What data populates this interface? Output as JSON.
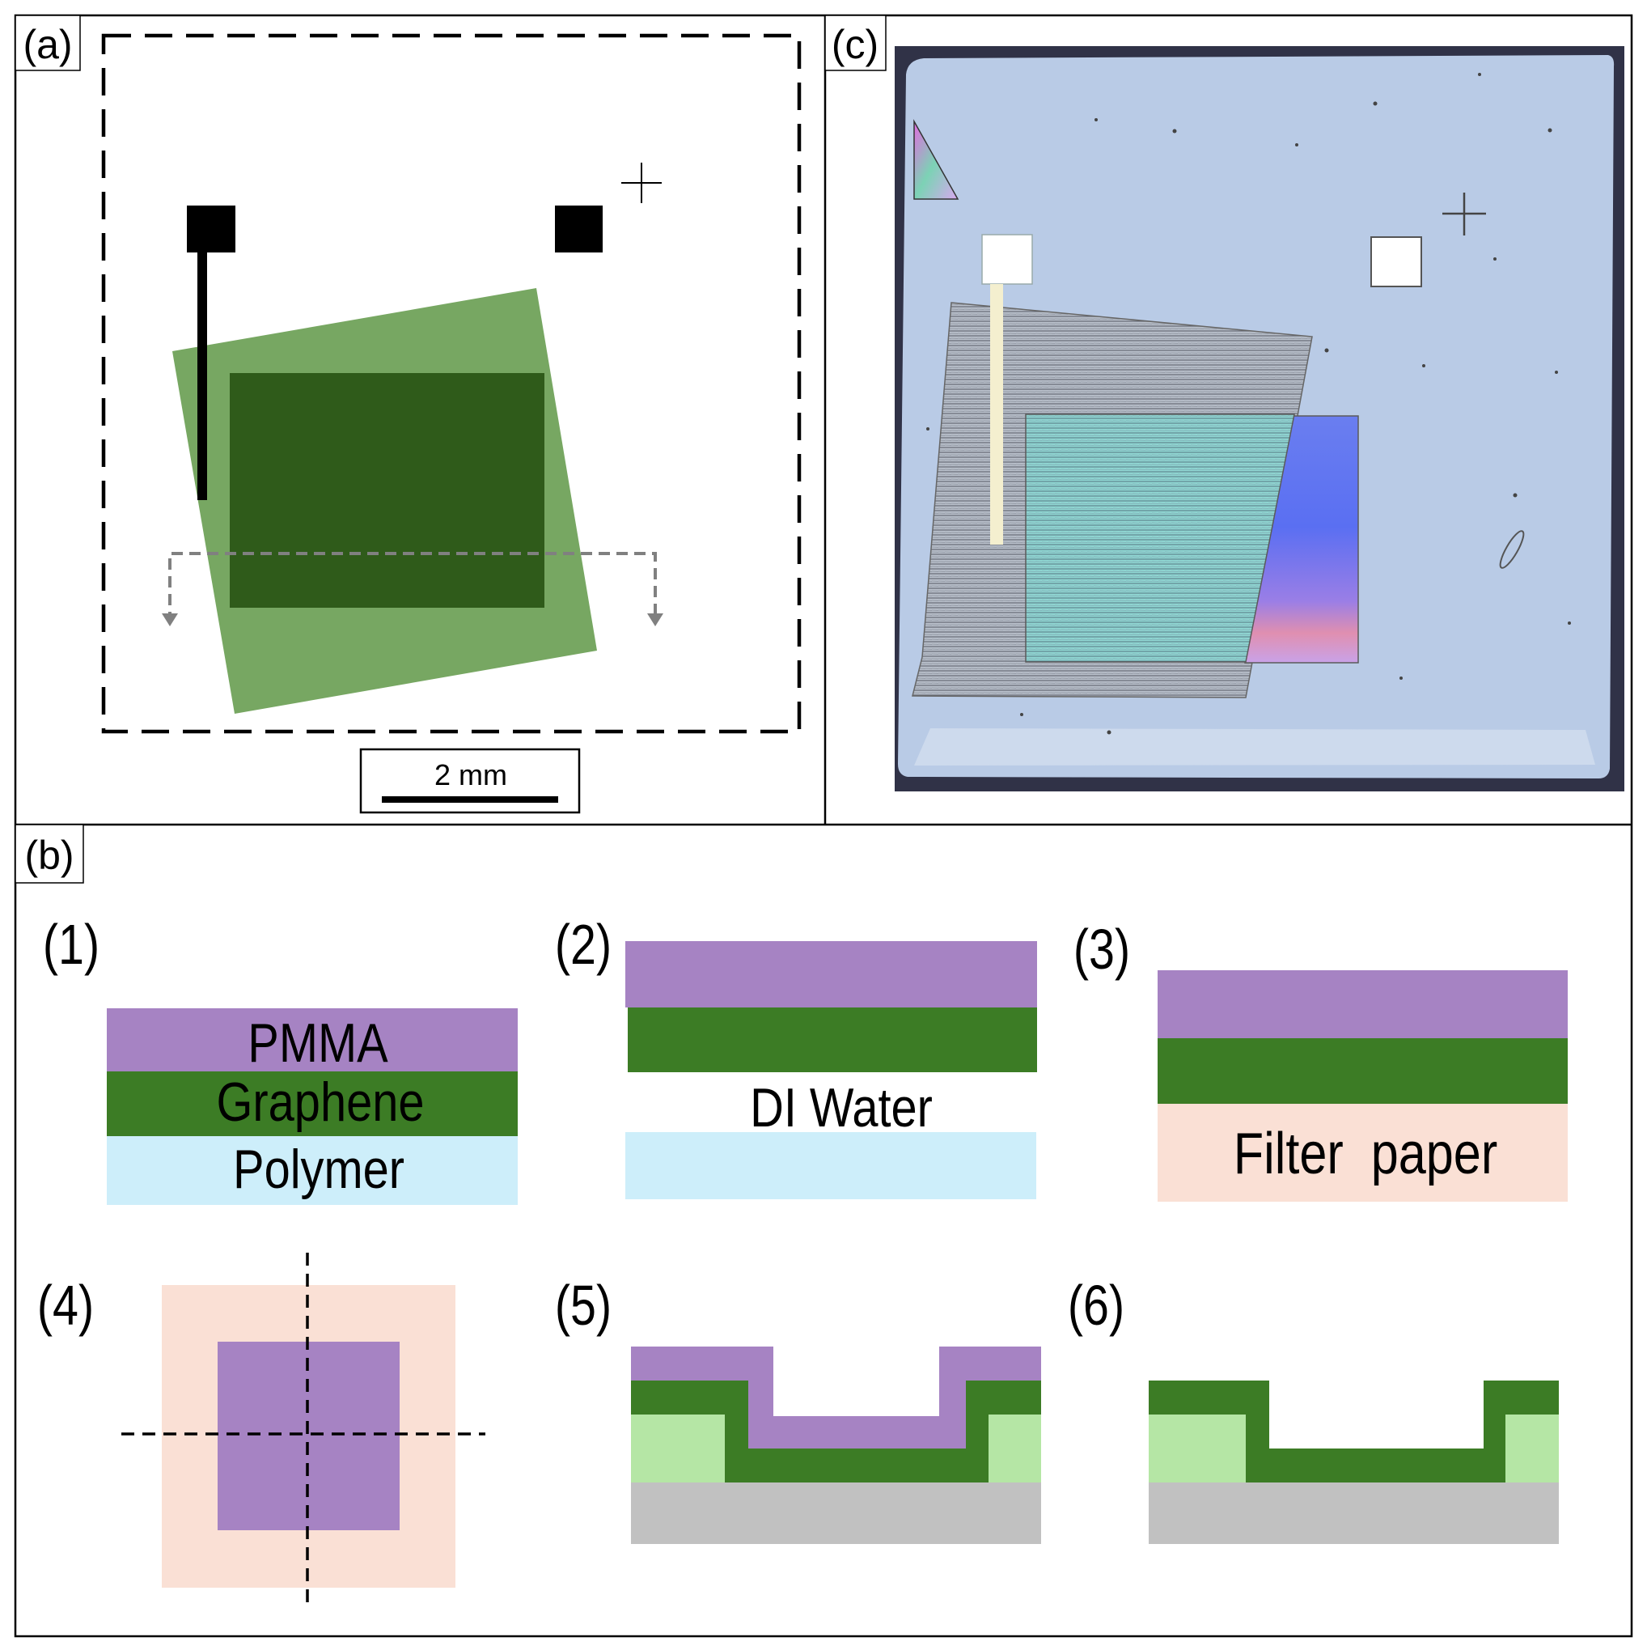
{
  "panels": {
    "a": {
      "label": "(a)",
      "scale_bar": "2 mm"
    },
    "b": {
      "label": "(b)",
      "steps": {
        "s1": {
          "label": "(1)",
          "layers": [
            "PMMA",
            "Graphene",
            "Polymer"
          ]
        },
        "s2": {
          "label": "(2)",
          "medium": "DI Water"
        },
        "s3": {
          "label": "(3)",
          "base": "Filter  paper"
        },
        "s4": {
          "label": "(4)"
        },
        "s5": {
          "label": "(5)"
        },
        "s6": {
          "label": "(6)"
        }
      }
    },
    "c": {
      "label": "(c)"
    }
  },
  "colors": {
    "pmma": "#a683c3",
    "graphene": "#3c7c25",
    "graphene_light": "#77a762",
    "graphene_dark": "#2c5918",
    "polymer": "#cdeefa",
    "filter_paper": "#fae0d5",
    "substrate_green": "#b5e6a5",
    "substrate": "#c1c1c1",
    "photo_frame": "#303247",
    "photo_surface": "#b9cbe6"
  }
}
